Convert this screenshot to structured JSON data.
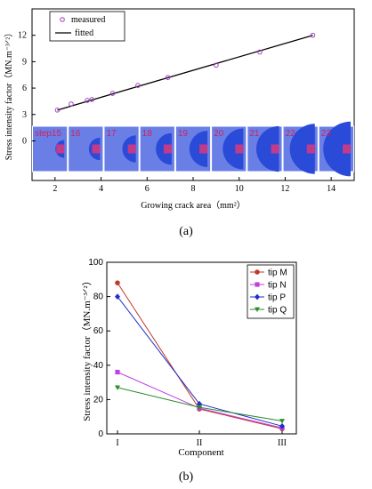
{
  "chart_data": [
    {
      "type": "scatter",
      "panel_label": "(a)",
      "xlabel": "Growing crack area（mm²）",
      "ylabel": "Stress intensity factor（MN.m⁻³ᐟ²）",
      "xlim": [
        1,
        15
      ],
      "ylim": [
        -4.5,
        15
      ],
      "xticks": [
        2,
        4,
        6,
        8,
        10,
        12,
        14
      ],
      "yticks": [
        0,
        3,
        6,
        9,
        12
      ],
      "grid": false,
      "legend_position": "top-left",
      "series": [
        {
          "name": "measured",
          "marker": "circle-open",
          "color": "#a040c0",
          "x": [
            2.1,
            2.7,
            3.4,
            3.6,
            4.5,
            5.6,
            6.9,
            9.0,
            10.9,
            13.2
          ],
          "y": [
            3.5,
            4.2,
            4.6,
            4.7,
            5.4,
            6.3,
            7.2,
            8.6,
            10.1,
            12.0
          ]
        },
        {
          "name": "fitted",
          "line": true,
          "color": "#000000",
          "x": [
            2.1,
            13.2
          ],
          "y": [
            3.5,
            12.0
          ]
        }
      ],
      "inset_frames": [
        "step15",
        "16",
        "17",
        "18",
        "19",
        "20",
        "21",
        "22",
        "23"
      ]
    },
    {
      "type": "line",
      "panel_label": "(b)",
      "xlabel": "Component",
      "ylabel": "Stress intensity factor（MN.m⁻³ᐟ²）",
      "categories": [
        "I",
        "II",
        "III"
      ],
      "ylim": [
        0,
        100
      ],
      "yticks": [
        0,
        20,
        40,
        60,
        80,
        100
      ],
      "grid": false,
      "legend_position": "top-right",
      "series": [
        {
          "name": "tip M",
          "color": "#c0392b",
          "marker": "circle",
          "values": [
            88,
            14.5,
            3
          ]
        },
        {
          "name": "tip N",
          "color": "#c040e0",
          "marker": "square",
          "values": [
            36,
            15,
            3.5
          ]
        },
        {
          "name": "tip P",
          "color": "#1f2fc8",
          "marker": "diamond",
          "values": [
            80,
            17.5,
            4.5
          ]
        },
        {
          "name": "tip Q",
          "color": "#2e8b2e",
          "marker": "triangle-down",
          "values": [
            27,
            15.5,
            7.5
          ]
        }
      ]
    }
  ]
}
